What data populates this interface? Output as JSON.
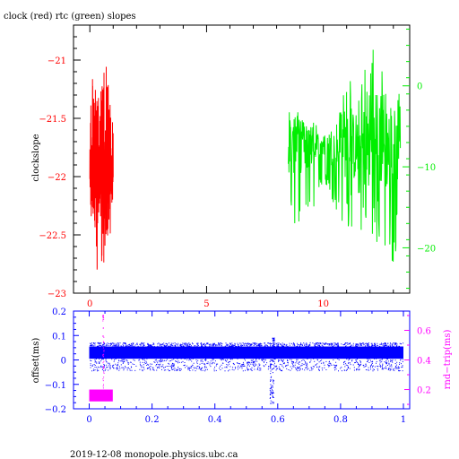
{
  "page": {
    "title": "clock (red) rtc (green) slopes",
    "footer": "2019-12-08  monopole.physics.ubc.ca"
  },
  "colors": {
    "frame": "#000000",
    "red": "#ff0000",
    "green": "#00ee00",
    "blue": "#0000ff",
    "magenta": "#ff00ff"
  },
  "chart_data": [
    {
      "type": "line",
      "title": "clock (red) rtc (green) slopes",
      "ylabel": "clockslope",
      "xlim": [
        -0.7,
        13.7
      ],
      "ylim": [
        -23.0,
        -20.7
      ],
      "right_ylim": [
        -25.6,
        7.5
      ],
      "x_ticks": [
        0,
        5,
        10
      ],
      "x_tick_labels": [
        "0",
        "5",
        "10"
      ],
      "y_ticks": [
        -21,
        -21.5,
        -22,
        -22.5,
        -23
      ],
      "y_tick_labels": [
        "−21",
        "−21.5",
        "−22",
        "−22.5",
        "−23"
      ],
      "right_y_ticks": [
        0,
        -10,
        -20
      ],
      "right_y_tick_labels": [
        "0",
        "−10",
        "−20"
      ],
      "series": [
        {
          "color": "red",
          "axis": "left",
          "x_range": [
            0.0,
            1.0
          ],
          "center": -21.95,
          "envelope": [
            [
              0.0,
              -22.25,
              -21.45
            ],
            [
              0.1,
              -22.55,
              -21.1
            ],
            [
              0.2,
              -22.45,
              -21.2
            ],
            [
              0.3,
              -22.9,
              -21.35
            ],
            [
              0.4,
              -22.3,
              -21.25
            ],
            [
              0.55,
              -22.95,
              -21.2
            ],
            [
              0.7,
              -22.5,
              -20.95
            ],
            [
              0.85,
              -22.55,
              -21.35
            ],
            [
              1.0,
              -22.15,
              -21.5
            ]
          ]
        },
        {
          "color": "green",
          "axis": "right",
          "x_range": [
            8.5,
            13.3
          ],
          "center": -7.5,
          "envelope": [
            [
              8.5,
              -17,
              -2
            ],
            [
              9.0,
              -18,
              -3
            ],
            [
              9.5,
              -16,
              -4
            ],
            [
              10.0,
              -12,
              -6
            ],
            [
              10.5,
              -15,
              -2
            ],
            [
              11.0,
              -18,
              0
            ],
            [
              11.5,
              -17,
              3
            ],
            [
              12.0,
              -21,
              5
            ],
            [
              12.5,
              -19,
              3
            ],
            [
              13.0,
              -24,
              4
            ],
            [
              13.3,
              -14,
              -2
            ]
          ]
        }
      ]
    },
    {
      "type": "scatter",
      "ylabel": "offset(ms)",
      "right_ylabel": "rnd−trip(ms)",
      "xlim": [
        -0.05,
        1.02
      ],
      "ylim": [
        -0.2,
        0.2
      ],
      "right_ylim": [
        0.07,
        0.73
      ],
      "x_ticks": [
        0,
        0.2,
        0.4,
        0.6,
        0.8,
        1
      ],
      "x_tick_labels": [
        "0",
        "0.2",
        "0.4",
        "0.6",
        "0.8",
        "1"
      ],
      "y_ticks": [
        0.2,
        0.1,
        0,
        -0.1,
        -0.2
      ],
      "y_tick_labels": [
        "0.2",
        "0.1",
        "0",
        "−0.1",
        "−0.2"
      ],
      "right_y_ticks": [
        0.6,
        0.4,
        0.2
      ],
      "right_y_tick_labels": [
        "0.6",
        "0.4",
        "0.2"
      ],
      "series": [
        {
          "color": "blue",
          "axis": "left",
          "x_range": [
            0.0,
            1.0
          ],
          "band": [
            0.005,
            0.055
          ],
          "scatter_low": -0.045,
          "dip_x": 0.58,
          "dip_min": -0.18,
          "spike_max": 0.09
        },
        {
          "color": "magenta",
          "axis": "right",
          "x_range": [
            0.0,
            0.075
          ],
          "band": [
            0.12,
            0.2
          ],
          "spike_x": 0.044,
          "spike_max": 0.71
        }
      ]
    }
  ]
}
